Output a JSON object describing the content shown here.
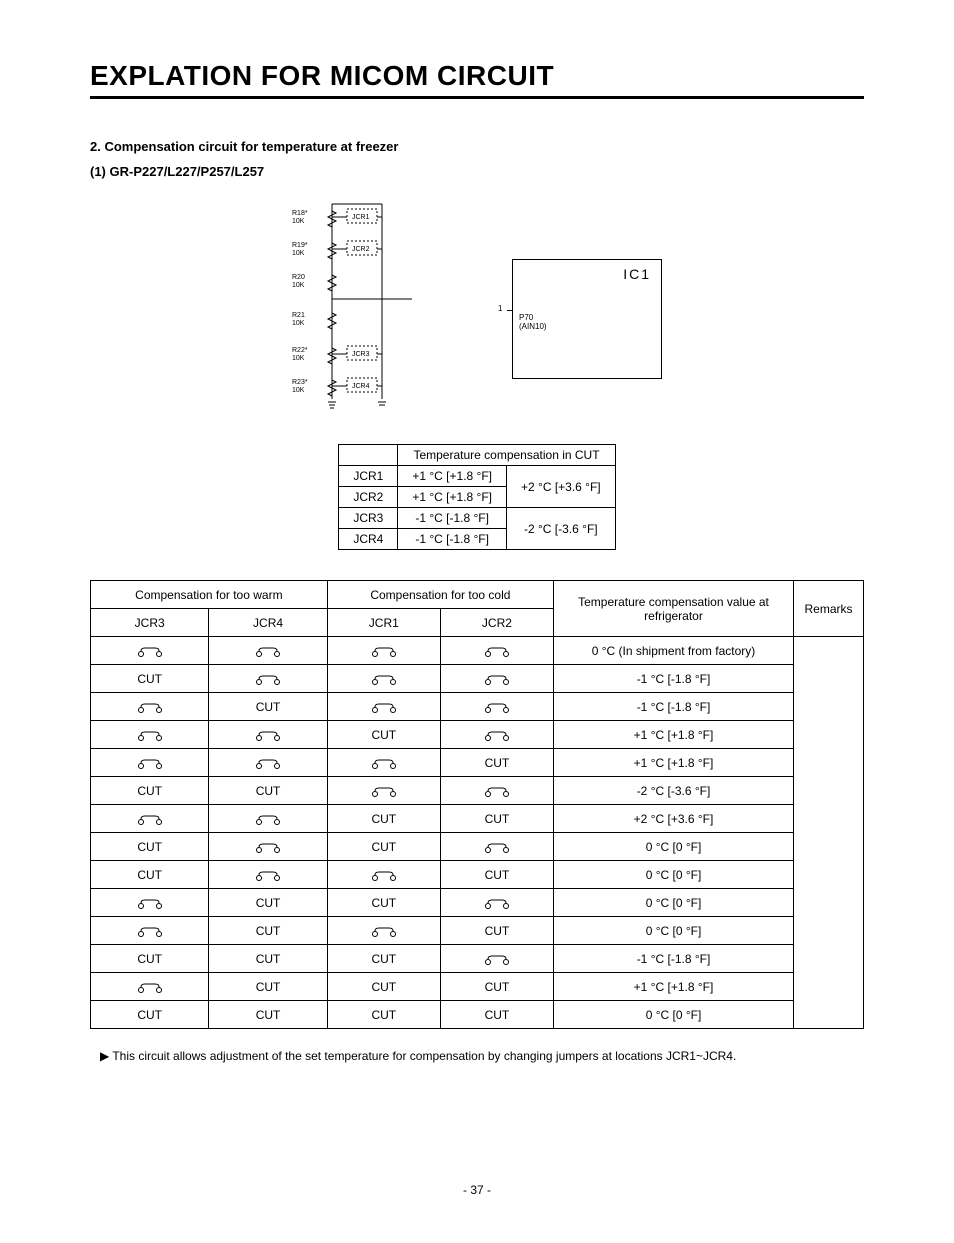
{
  "title": "EXPLATION FOR MICOM CIRCUIT",
  "subtitle": "2. Compensation circuit for temperature at freezer",
  "model": "(1) GR-P227/L227/P257/L257",
  "diagram": {
    "resistors": [
      "R18* 10K",
      "R19* 10K",
      "R20 10K",
      "R21 10K",
      "R22* 10K",
      "R23* 10K"
    ],
    "jumpers": [
      "JCR1",
      "JCR2",
      "JCR3",
      "JCR4"
    ],
    "ic_label": "IC1",
    "pin": "P70 (AIN10)",
    "pin_num": "1"
  },
  "table1": {
    "header": "Temperature compensation in CUT",
    "rows": [
      {
        "j": "JCR1",
        "v": "+1 °C [+1.8 °F]",
        "g": "+2 °C [+3.6 °F]"
      },
      {
        "j": "JCR2",
        "v": "+1 °C [+1.8 °F]"
      },
      {
        "j": "JCR3",
        "v": "-1 °C [-1.8 °F]",
        "g": "-2 °C [-3.6 °F]"
      },
      {
        "j": "JCR4",
        "v": "-1 °C [-1.8 °F]"
      }
    ]
  },
  "table2": {
    "headers": {
      "warm": "Compensation for too warm",
      "cold": "Compensation for too cold",
      "value": "Temperature compensation value at refrigerator",
      "remarks": "Remarks",
      "jcr3": "JCR3",
      "jcr4": "JCR4",
      "jcr1": "JCR1",
      "jcr2": "JCR2"
    },
    "cut": "CUT",
    "rows": [
      {
        "c": [
          "O",
          "O",
          "O",
          "O"
        ],
        "v": "0 °C (In shipment from factory)"
      },
      {
        "c": [
          "C",
          "O",
          "O",
          "O"
        ],
        "v": "-1 °C [-1.8 °F]"
      },
      {
        "c": [
          "O",
          "C",
          "O",
          "O"
        ],
        "v": "-1 °C [-1.8 °F]"
      },
      {
        "c": [
          "O",
          "O",
          "C",
          "O"
        ],
        "v": "+1 °C [+1.8 °F]"
      },
      {
        "c": [
          "O",
          "O",
          "O",
          "C"
        ],
        "v": "+1 °C [+1.8 °F]"
      },
      {
        "c": [
          "C",
          "C",
          "O",
          "O"
        ],
        "v": "-2 °C [-3.6 °F]"
      },
      {
        "c": [
          "O",
          "O",
          "C",
          "C"
        ],
        "v": "+2 °C [+3.6 °F]"
      },
      {
        "c": [
          "C",
          "O",
          "C",
          "O"
        ],
        "v": "0 °C [0 °F]"
      },
      {
        "c": [
          "C",
          "O",
          "O",
          "C"
        ],
        "v": "0 °C [0 °F]"
      },
      {
        "c": [
          "O",
          "C",
          "C",
          "O"
        ],
        "v": "0 °C [0 °F]"
      },
      {
        "c": [
          "O",
          "C",
          "O",
          "C"
        ],
        "v": "0 °C [0 °F]"
      },
      {
        "c": [
          "C",
          "C",
          "C",
          "O"
        ],
        "v": "-1 °C [-1.8 °F]"
      },
      {
        "c": [
          "O",
          "C",
          "C",
          "C"
        ],
        "v": "+1 °C [+1.8 °F]"
      },
      {
        "c": [
          "C",
          "C",
          "C",
          "C"
        ],
        "v": "0 °C [0 °F]"
      }
    ]
  },
  "footnote": "▶ This circuit allows adjustment of the set temperature for compensation by changing jumpers at locations JCR1~JCR4.",
  "page": "- 37 -"
}
